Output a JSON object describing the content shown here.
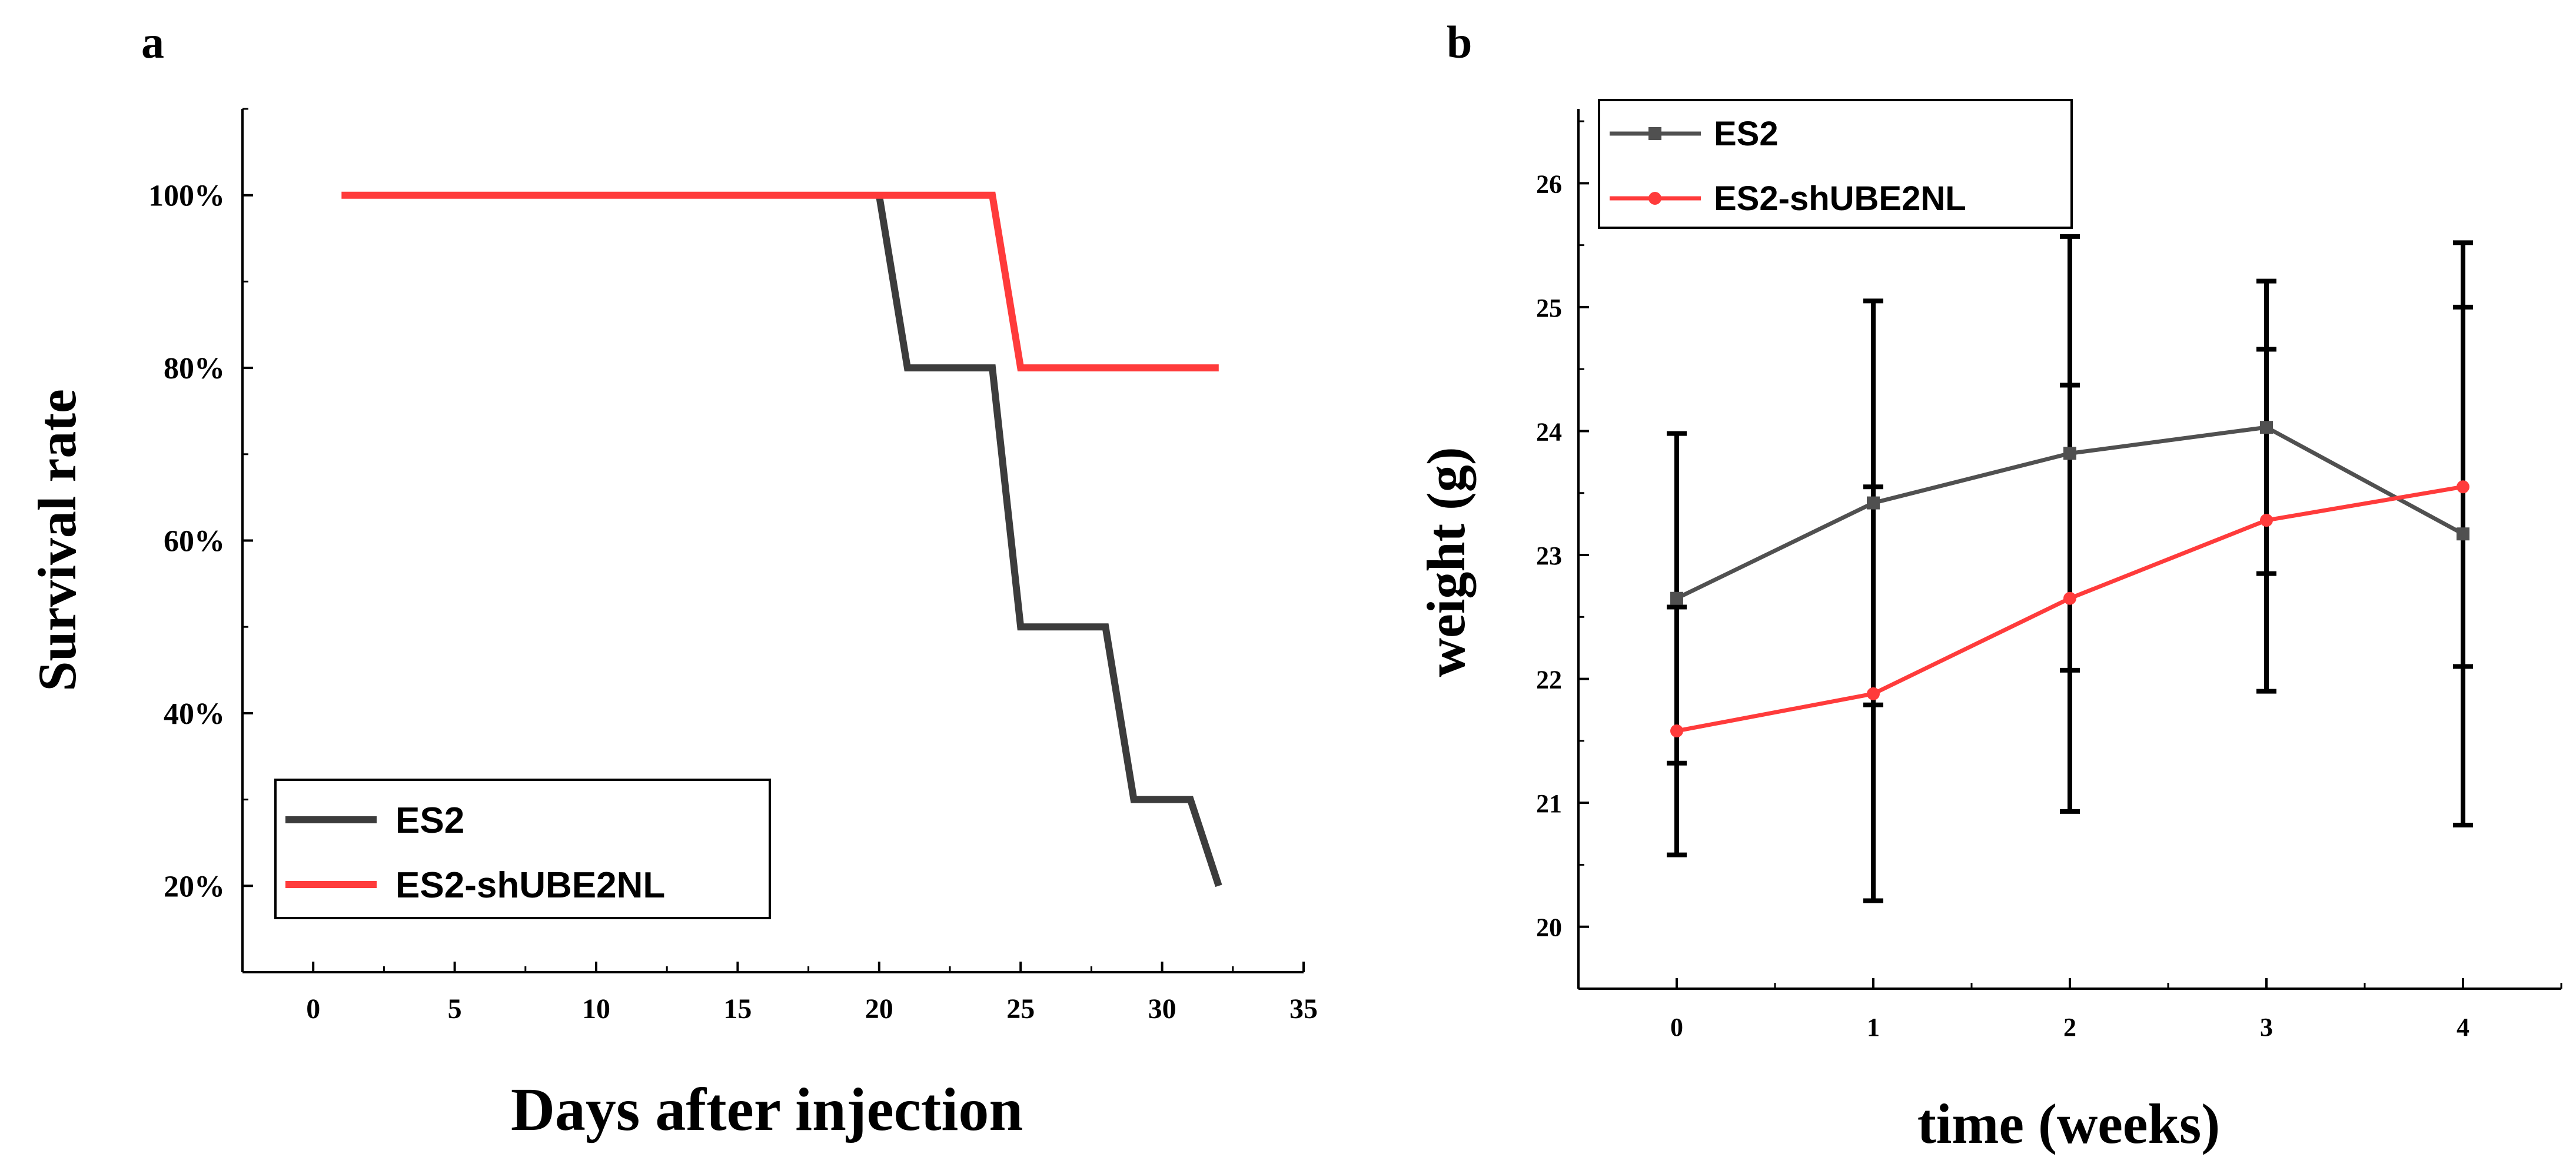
{
  "chart_data": [
    {
      "panel": "a",
      "type": "line",
      "step": true,
      "xlabel": "Days after injection",
      "ylabel": "Survival rate",
      "xlim": [
        -2.5,
        35
      ],
      "ylim": [
        10,
        110
      ],
      "xticks": [
        0,
        5,
        10,
        15,
        20,
        25,
        30,
        35
      ],
      "yticks": [
        20,
        40,
        60,
        80,
        100
      ],
      "ytick_labels": [
        "20%",
        "40%",
        "60%",
        "80%",
        "100%"
      ],
      "legend_position": "bottom-left",
      "series": [
        {
          "name": "ES2",
          "color": "#3c3c3c",
          "points": [
            [
              20,
              100
            ],
            [
              21,
              80
            ],
            [
              24,
              80
            ],
            [
              25,
              50
            ],
            [
              28,
              50
            ],
            [
              29,
              30
            ],
            [
              31,
              30
            ],
            [
              32,
              20
            ]
          ]
        },
        {
          "name": "ES2-shUBE2NL",
          "color": "#ff3b3b",
          "points": [
            [
              1,
              100
            ],
            [
              24,
              100
            ],
            [
              25,
              80
            ],
            [
              32,
              80
            ]
          ]
        }
      ]
    },
    {
      "panel": "b",
      "type": "line",
      "xlabel": "time (weeks)",
      "ylabel": "weight (g)",
      "xlim": [
        -0.5,
        4.5
      ],
      "ylim": [
        19.5,
        26.6
      ],
      "xticks": [
        0,
        1,
        2,
        3,
        4
      ],
      "yticks": [
        20,
        21,
        22,
        23,
        24,
        25,
        26
      ],
      "legend_position": "top-left",
      "series": [
        {
          "name": "ES2",
          "color": "#505050",
          "marker": "square",
          "x": [
            0,
            1,
            2,
            3,
            4
          ],
          "y": [
            22.65,
            23.42,
            23.82,
            24.03,
            23.17
          ],
          "error": [
            1.33,
            1.63,
            1.75,
            1.18,
            2.35
          ]
        },
        {
          "name": "ES2-shUBE2NL",
          "color": "#ff3b3b",
          "marker": "circle",
          "x": [
            0,
            1,
            2,
            3,
            4
          ],
          "y": [
            21.58,
            21.88,
            22.65,
            23.28,
            23.55
          ],
          "error": [
            1.0,
            1.67,
            1.72,
            1.38,
            1.45
          ]
        }
      ]
    }
  ]
}
